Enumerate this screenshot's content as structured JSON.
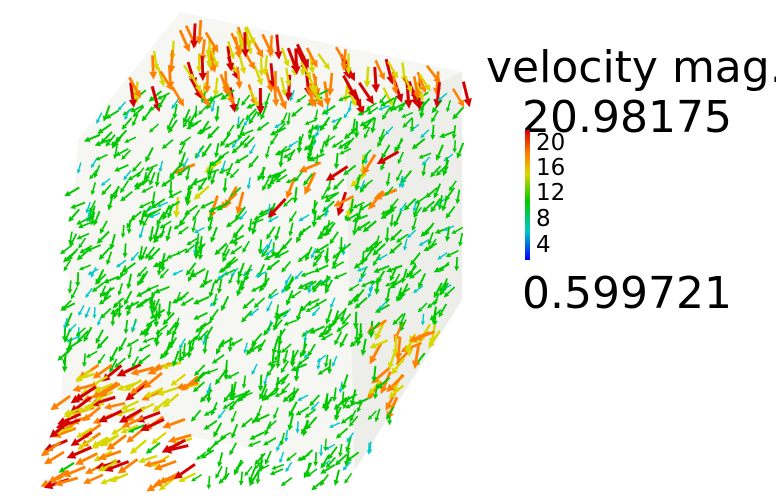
{
  "legend": {
    "title": "velocity mag.",
    "max_label": "20.98175",
    "min_label": "0.599721",
    "ticks": [
      "20",
      "16",
      "12",
      "8",
      "4"
    ],
    "range": [
      0.599721,
      20.98175
    ]
  },
  "colors": {
    "high": "#d40000",
    "mid_high": "#ff8000",
    "mid": "#d8d800",
    "low_mid": "#00c800",
    "low": "#00c8c8",
    "min": "#0000ff",
    "background": "#ffffff",
    "domain_face": "#eeeeea"
  }
}
